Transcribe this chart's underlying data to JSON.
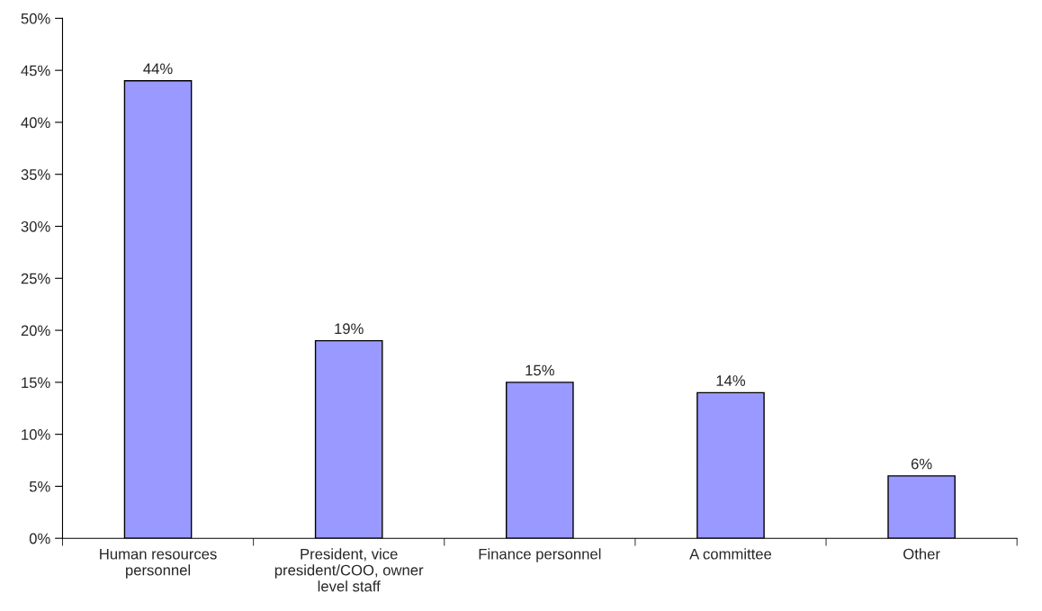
{
  "chart_data": {
    "type": "bar",
    "categories": [
      "Human resources\npersonnel",
      "President, vice\npresident/COO, owner\nlevel staff",
      "Finance personnel",
      "A committee",
      "Other"
    ],
    "values": [
      44,
      19,
      15,
      14,
      6
    ],
    "value_labels": [
      "44%",
      "19%",
      "15%",
      "14%",
      "6%"
    ],
    "color": "#9999ff",
    "ylim": [
      0,
      50
    ],
    "yticks": [
      {
        "value": 0,
        "label": "0%"
      },
      {
        "value": 5,
        "label": "5%"
      },
      {
        "value": 10,
        "label": "10%"
      },
      {
        "value": 15,
        "label": "15%"
      },
      {
        "value": 20,
        "label": "20%"
      },
      {
        "value": 25,
        "label": "25%"
      },
      {
        "value": 30,
        "label": "30%"
      },
      {
        "value": 35,
        "label": "35%"
      },
      {
        "value": 40,
        "label": "40%"
      },
      {
        "value": 45,
        "label": "45%"
      },
      {
        "value": 50,
        "label": "50%"
      }
    ],
    "grid": false
  }
}
